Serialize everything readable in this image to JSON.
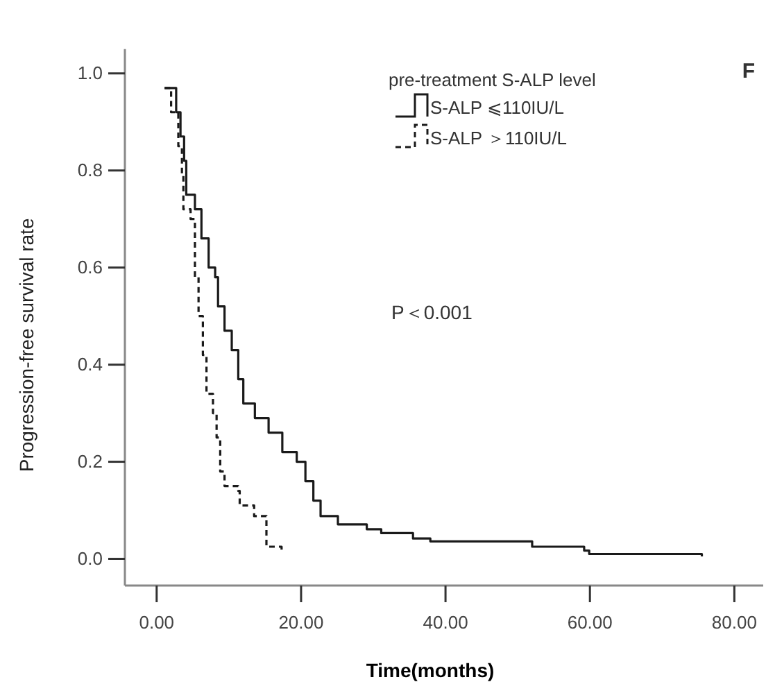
{
  "chart_data": {
    "type": "step",
    "xlabel": "Time(months)",
    "ylabel": "Progression-free survival rate",
    "legend_title": "pre-treatment S-ALP level",
    "legend": "top right",
    "grid": false,
    "marker": "none",
    "xlim": [
      -4.4,
      84
    ],
    "xticks": [
      {
        "value": 0,
        "label": "0.00"
      },
      {
        "value": 20,
        "label": "20.00"
      },
      {
        "value": 40,
        "label": "40.00"
      },
      {
        "value": 60,
        "label": "60.00"
      },
      {
        "value": 80,
        "label": "80.00"
      }
    ],
    "ylim": [
      -0.055,
      1.05
    ],
    "yticks": [
      {
        "value": 0,
        "label": "0.0"
      },
      {
        "value": 0.2,
        "label": "0.2"
      },
      {
        "value": 0.4,
        "label": "0.4"
      },
      {
        "value": 0.6,
        "label": "0.6"
      },
      {
        "value": 0.8,
        "label": "0.8"
      },
      {
        "value": 1,
        "label": "1.0"
      }
    ],
    "annotations": [
      "P＜0.001",
      "F"
    ],
    "series": [
      {
        "name": "S-ALP ⩽110IU/L",
        "color": "#1a1a1a",
        "line_style": "solid",
        "x": [
          1.1,
          2.7,
          3.3,
          3.8,
          4.1,
          5.3,
          6.2,
          7.2,
          8.1,
          8.5,
          9.4,
          10.4,
          11.3,
          12.0,
          13.6,
          15.5,
          17.4,
          19.4,
          20.6,
          21.7,
          22.7,
          25.1,
          29.1,
          31.1,
          35.5,
          37.9,
          52.0,
          59.2,
          59.9,
          75.5
        ],
        "values": [
          0.97,
          0.92,
          0.87,
          0.82,
          0.75,
          0.72,
          0.66,
          0.6,
          0.58,
          0.52,
          0.47,
          0.43,
          0.37,
          0.32,
          0.29,
          0.26,
          0.22,
          0.2,
          0.16,
          0.12,
          0.088,
          0.071,
          0.061,
          0.053,
          0.042,
          0.036,
          0.025,
          0.017,
          0.01,
          0.005
        ]
      },
      {
        "name": "S-ALP ＞110IU/L",
        "color": "#1a1a1a",
        "line_style": "dashed",
        "x": [
          1.1,
          2.0,
          3.0,
          3.5,
          3.7,
          4.7,
          5.3,
          5.8,
          6.4,
          6.9,
          7.8,
          8.3,
          8.8,
          9.4,
          11.3,
          11.5,
          13.5,
          15.2,
          17.3
        ],
        "values": [
          0.97,
          0.92,
          0.85,
          0.79,
          0.72,
          0.7,
          0.58,
          0.5,
          0.42,
          0.34,
          0.3,
          0.25,
          0.18,
          0.15,
          0.14,
          0.11,
          0.088,
          0.025,
          0.012
        ]
      }
    ]
  }
}
